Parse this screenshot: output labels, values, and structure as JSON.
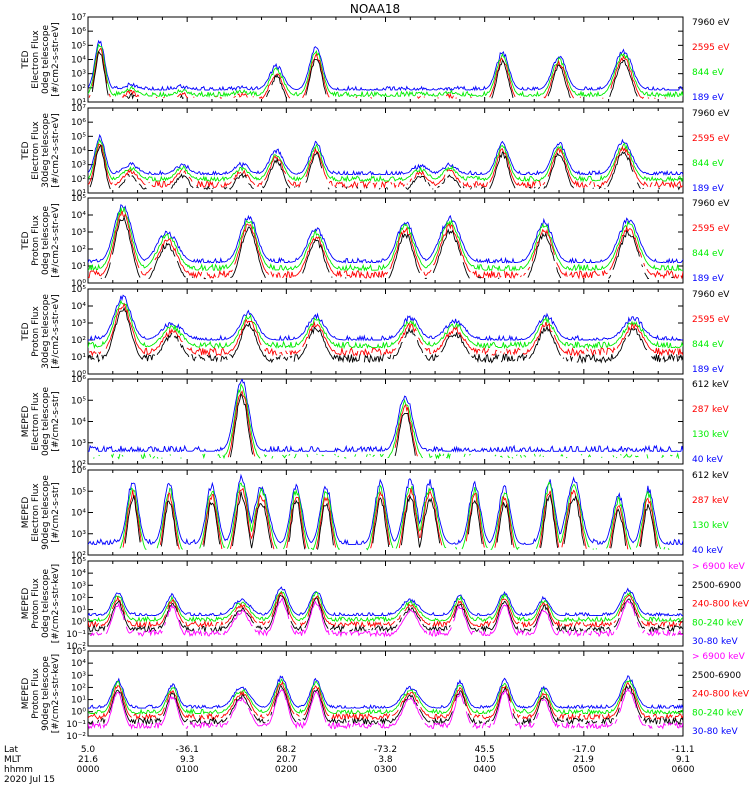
{
  "title": "NOAA18",
  "colors": {
    "blue": "#0000ff",
    "red": "#ff0000",
    "green": "#00ee00",
    "black": "#000000",
    "magenta": "#ff00ff"
  },
  "footer": {
    "row_labels": [
      "Lat",
      "MLT",
      "hhmm",
      "2020 Jul 15"
    ],
    "ticks": [
      {
        "lat": "5.0",
        "mlt": "21.6",
        "time": "0000"
      },
      {
        "lat": "-36.1",
        "mlt": "9.3",
        "time": "0100"
      },
      {
        "lat": "68.2",
        "mlt": "20.7",
        "time": "0200"
      },
      {
        "lat": "-73.2",
        "mlt": "3.8",
        "time": "0300"
      },
      {
        "lat": "45.5",
        "mlt": "10.5",
        "time": "0400"
      },
      {
        "lat": "-17.0",
        "mlt": "21.9",
        "time": "0500"
      },
      {
        "lat": "-11.1",
        "mlt": "9.1",
        "time": "0600"
      }
    ]
  },
  "chart_data": [
    {
      "type": "line",
      "id": "ted-e-0",
      "ylabel": [
        "TED",
        "Electron Flux",
        "0deg telescope",
        "[#/cm2-s-str-eV]"
      ],
      "ylog": true,
      "ylim_exp": [
        1,
        7
      ],
      "ytick_labels": [
        "10¹",
        "10²",
        "10³",
        "10⁴",
        "10⁵",
        "10⁶",
        "10⁷"
      ],
      "series": [
        {
          "name": "7960 eV",
          "color": "black"
        },
        {
          "name": "2595 eV",
          "color": "red"
        },
        {
          "name": "844 eV",
          "color": "green"
        },
        {
          "name": "189 eV",
          "color": "blue"
        }
      ],
      "events": [
        {
          "t": 0.12,
          "w": 0.07,
          "peak": 5.3
        },
        {
          "t": 0.43,
          "w": 0.1,
          "peak": 2.2
        },
        {
          "t": 0.95,
          "w": 0.08,
          "peak": 2.1
        },
        {
          "t": 1.55,
          "w": 0.1,
          "peak": 2.0
        },
        {
          "t": 1.9,
          "w": 0.1,
          "peak": 3.5
        },
        {
          "t": 2.3,
          "w": 0.09,
          "peak": 4.8
        },
        {
          "t": 3.35,
          "w": 0.1,
          "peak": 1.8
        },
        {
          "t": 3.65,
          "w": 0.1,
          "peak": 1.9
        },
        {
          "t": 4.18,
          "w": 0.09,
          "peak": 4.5
        },
        {
          "t": 4.75,
          "w": 0.1,
          "peak": 4.2
        },
        {
          "t": 5.4,
          "w": 0.12,
          "peak": 4.6
        }
      ],
      "baseline": 1.85
    },
    {
      "type": "line",
      "id": "ted-e-30",
      "ylabel": [
        "TED",
        "Electron Flux",
        "30deg telescope",
        "[#/cm2-s-str-eV]"
      ],
      "ylog": true,
      "ylim_exp": [
        1,
        7
      ],
      "ytick_labels": [
        "10¹",
        "10²",
        "10³",
        "10⁴",
        "10⁵",
        "10⁶",
        "10⁷"
      ],
      "series": [
        {
          "name": "7960 eV",
          "color": "black"
        },
        {
          "name": "2595 eV",
          "color": "red"
        },
        {
          "name": "844 eV",
          "color": "green"
        },
        {
          "name": "189 eV",
          "color": "blue"
        }
      ],
      "events": [
        {
          "t": 0.12,
          "w": 0.07,
          "peak": 5.0
        },
        {
          "t": 0.43,
          "w": 0.11,
          "peak": 3.0
        },
        {
          "t": 0.95,
          "w": 0.1,
          "peak": 3.0
        },
        {
          "t": 1.55,
          "w": 0.1,
          "peak": 3.0
        },
        {
          "t": 1.9,
          "w": 0.1,
          "peak": 4.0
        },
        {
          "t": 2.3,
          "w": 0.09,
          "peak": 4.5
        },
        {
          "t": 3.35,
          "w": 0.11,
          "peak": 2.9
        },
        {
          "t": 3.65,
          "w": 0.1,
          "peak": 3.0
        },
        {
          "t": 4.18,
          "w": 0.09,
          "peak": 4.5
        },
        {
          "t": 4.75,
          "w": 0.1,
          "peak": 4.5
        },
        {
          "t": 5.4,
          "w": 0.12,
          "peak": 4.6
        }
      ],
      "baseline": 2.3
    },
    {
      "type": "line",
      "id": "ted-p-0",
      "ylabel": [
        "TED",
        "Proton Flux",
        "0deg telescope",
        "[#/cm2-s-str-eV]"
      ],
      "ylog": true,
      "ylim_exp": [
        0,
        5
      ],
      "ytick_labels": [
        "10⁰",
        "10¹",
        "10²",
        "10³",
        "10⁴",
        "10⁵"
      ],
      "series": [
        {
          "name": "7960 eV",
          "color": "black"
        },
        {
          "name": "2595 eV",
          "color": "red"
        },
        {
          "name": "844 eV",
          "color": "green"
        },
        {
          "name": "189 eV",
          "color": "blue"
        }
      ],
      "events": [
        {
          "t": 0.35,
          "w": 0.12,
          "peak": 4.6
        },
        {
          "t": 0.8,
          "w": 0.14,
          "peak": 3.0
        },
        {
          "t": 1.62,
          "w": 0.12,
          "peak": 3.9
        },
        {
          "t": 2.3,
          "w": 0.12,
          "peak": 3.2
        },
        {
          "t": 3.2,
          "w": 0.12,
          "peak": 3.6
        },
        {
          "t": 3.65,
          "w": 0.14,
          "peak": 3.8
        },
        {
          "t": 4.6,
          "w": 0.12,
          "peak": 3.6
        },
        {
          "t": 5.45,
          "w": 0.14,
          "peak": 3.7
        }
      ],
      "baseline": 1.2
    },
    {
      "type": "line",
      "id": "ted-p-30",
      "ylabel": [
        "TED",
        "Proton Flux",
        "30deg telescope",
        "[#/cm2-s-str-eV]"
      ],
      "ylog": true,
      "ylim_exp": [
        0,
        5
      ],
      "ytick_labels": [
        "10⁰",
        "10¹",
        "10²",
        "10³",
        "10⁴",
        "10⁵"
      ],
      "series": [
        {
          "name": "7960 eV",
          "color": "black"
        },
        {
          "name": "2595 eV",
          "color": "red"
        },
        {
          "name": "844 eV",
          "color": "green"
        },
        {
          "name": "189 eV",
          "color": "blue"
        }
      ],
      "events": [
        {
          "t": 0.35,
          "w": 0.12,
          "peak": 4.5
        },
        {
          "t": 0.85,
          "w": 0.14,
          "peak": 3.0
        },
        {
          "t": 1.62,
          "w": 0.12,
          "peak": 3.6
        },
        {
          "t": 2.3,
          "w": 0.12,
          "peak": 3.4
        },
        {
          "t": 3.25,
          "w": 0.12,
          "peak": 3.3
        },
        {
          "t": 3.7,
          "w": 0.14,
          "peak": 3.1
        },
        {
          "t": 4.62,
          "w": 0.12,
          "peak": 3.4
        },
        {
          "t": 5.5,
          "w": 0.14,
          "peak": 3.3
        }
      ],
      "baseline": 2.0
    },
    {
      "type": "line",
      "id": "meped-e-0",
      "ylabel": [
        "MEPED",
        "Electron Flux",
        "0deg telescope",
        "[#/cm2-s-str]"
      ],
      "ylog": true,
      "ylim_exp": [
        2,
        6
      ],
      "ytick_labels": [
        "10²",
        "10³",
        "10⁴",
        "10⁵",
        "10⁶"
      ],
      "series": [
        {
          "name": "612 keV",
          "color": "black"
        },
        {
          "name": "287 keV",
          "color": "red"
        },
        {
          "name": "130 keV",
          "color": "green"
        },
        {
          "name": "40 keV",
          "color": "blue"
        }
      ],
      "events": [
        {
          "t": 1.55,
          "w": 0.1,
          "peak": 5.9
        },
        {
          "t": 3.2,
          "w": 0.1,
          "peak": 5.2
        }
      ],
      "baseline": 2.6
    },
    {
      "type": "line",
      "id": "meped-e-90",
      "ylabel": [
        "MEPED",
        "Electron Flux",
        "90deg telescope",
        "[#/cm2-s-str]"
      ],
      "ylog": true,
      "ylim_exp": [
        2,
        6
      ],
      "ytick_labels": [
        "10²",
        "10³",
        "10⁴",
        "10⁵",
        "10⁶"
      ],
      "series": [
        {
          "name": "612 keV",
          "color": "black"
        },
        {
          "name": "287 keV",
          "color": "red"
        },
        {
          "name": "130 keV",
          "color": "green"
        },
        {
          "name": "40 keV",
          "color": "blue"
        }
      ],
      "events": [
        {
          "t": 0.45,
          "w": 0.08,
          "peak": 5.4
        },
        {
          "t": 0.82,
          "w": 0.08,
          "peak": 5.3
        },
        {
          "t": 1.25,
          "w": 0.08,
          "peak": 5.3
        },
        {
          "t": 1.55,
          "w": 0.09,
          "peak": 5.6
        },
        {
          "t": 1.75,
          "w": 0.1,
          "peak": 5.2
        },
        {
          "t": 2.1,
          "w": 0.08,
          "peak": 5.3
        },
        {
          "t": 2.4,
          "w": 0.08,
          "peak": 5.2
        },
        {
          "t": 2.95,
          "w": 0.08,
          "peak": 5.4
        },
        {
          "t": 3.25,
          "w": 0.09,
          "peak": 5.5
        },
        {
          "t": 3.45,
          "w": 0.1,
          "peak": 5.4
        },
        {
          "t": 3.9,
          "w": 0.08,
          "peak": 5.3
        },
        {
          "t": 4.2,
          "w": 0.08,
          "peak": 5.2
        },
        {
          "t": 4.65,
          "w": 0.08,
          "peak": 5.5
        },
        {
          "t": 4.9,
          "w": 0.1,
          "peak": 5.5
        },
        {
          "t": 5.35,
          "w": 0.08,
          "peak": 4.8
        },
        {
          "t": 5.65,
          "w": 0.08,
          "peak": 5.1
        }
      ],
      "baseline": 2.5
    },
    {
      "type": "line",
      "id": "meped-p-0",
      "ylabel": [
        "MEPED",
        "Proton Flux",
        "0deg telescope",
        "[#/cm2-s-str-keV]"
      ],
      "ylog": true,
      "ylim_exp": [
        -2,
        5
      ],
      "ytick_labels": [
        "10⁻²",
        "10⁻¹",
        "10⁰",
        "10¹",
        "10²",
        "10³",
        "10⁴",
        "10⁵"
      ],
      "series": [
        {
          "name": "> 6900 keV",
          "color": "magenta"
        },
        {
          "name": "2500-6900",
          "color": "black"
        },
        {
          "name": "240-800 keV",
          "color": "red"
        },
        {
          "name": "80-240 keV",
          "color": "green"
        },
        {
          "name": "30-80 keV",
          "color": "blue"
        }
      ],
      "events": [
        {
          "t": 0.3,
          "w": 0.08,
          "peak": 2.4
        },
        {
          "t": 0.85,
          "w": 0.08,
          "peak": 2.2
        },
        {
          "t": 1.55,
          "w": 0.12,
          "peak": 1.8
        },
        {
          "t": 1.95,
          "w": 0.09,
          "peak": 2.8
        },
        {
          "t": 2.3,
          "w": 0.08,
          "peak": 2.6
        },
        {
          "t": 3.25,
          "w": 0.12,
          "peak": 1.8
        },
        {
          "t": 3.75,
          "w": 0.08,
          "peak": 2.2
        },
        {
          "t": 4.2,
          "w": 0.08,
          "peak": 2.4
        },
        {
          "t": 4.6,
          "w": 0.08,
          "peak": 2.0
        },
        {
          "t": 5.45,
          "w": 0.1,
          "peak": 2.6
        }
      ],
      "baseline": 0.5
    },
    {
      "type": "line",
      "id": "meped-p-90",
      "ylabel": [
        "MEPED",
        "Proton Flux",
        "90deg telescope",
        "[#/cm2-s-str-keV]"
      ],
      "ylog": true,
      "ylim_exp": [
        -2,
        5
      ],
      "ytick_labels": [
        "10⁻²",
        "10⁻¹",
        "10⁰",
        "10¹",
        "10²",
        "10³",
        "10⁴",
        "10⁵"
      ],
      "series": [
        {
          "name": "> 6900 keV",
          "color": "magenta"
        },
        {
          "name": "2500-6900",
          "color": "black"
        },
        {
          "name": "240-800 keV",
          "color": "red"
        },
        {
          "name": "80-240 keV",
          "color": "green"
        },
        {
          "name": "30-80 keV",
          "color": "blue"
        }
      ],
      "events": [
        {
          "t": 0.3,
          "w": 0.08,
          "peak": 2.6
        },
        {
          "t": 0.85,
          "w": 0.08,
          "peak": 2.2
        },
        {
          "t": 1.55,
          "w": 0.12,
          "peak": 2.0
        },
        {
          "t": 1.95,
          "w": 0.09,
          "peak": 2.8
        },
        {
          "t": 2.3,
          "w": 0.08,
          "peak": 2.6
        },
        {
          "t": 3.25,
          "w": 0.12,
          "peak": 2.0
        },
        {
          "t": 3.75,
          "w": 0.08,
          "peak": 2.4
        },
        {
          "t": 4.2,
          "w": 0.08,
          "peak": 2.6
        },
        {
          "t": 4.6,
          "w": 0.08,
          "peak": 2.0
        },
        {
          "t": 5.45,
          "w": 0.1,
          "peak": 2.8
        }
      ],
      "baseline": 0.3
    }
  ]
}
